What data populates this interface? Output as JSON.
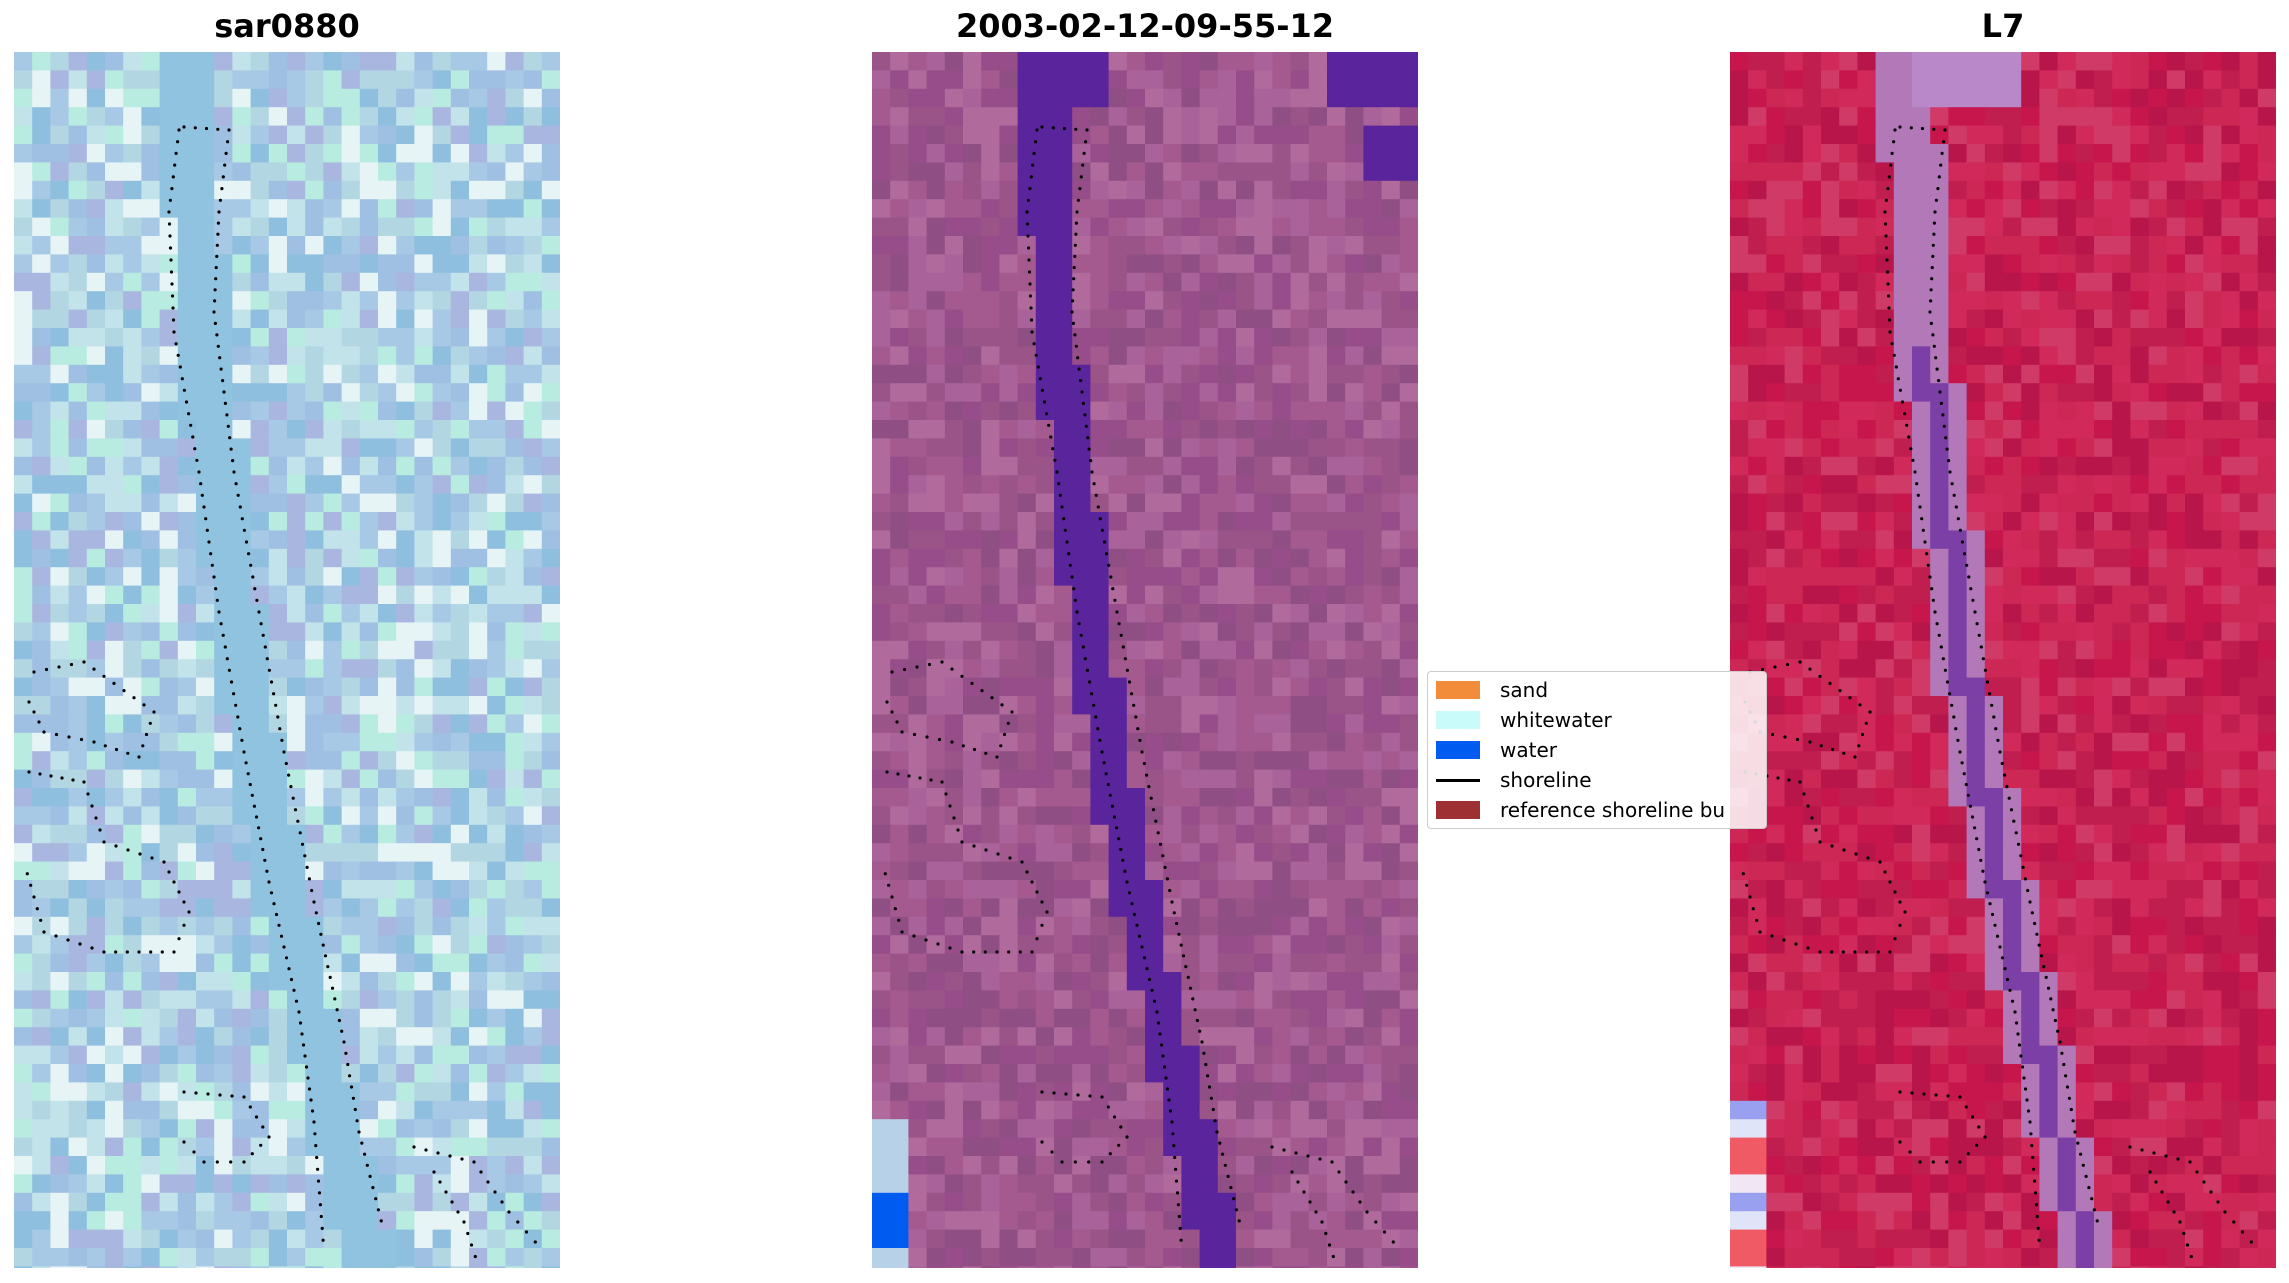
{
  "panels": [
    {
      "title": "sar0880",
      "palette": [
        "#a7c9e6",
        "#9fc0e2",
        "#b3d6e3",
        "#a9b6e0",
        "#c2e3ea",
        "#8fbfdf",
        "#b9ece0",
        "#e7f4f6"
      ]
    },
    {
      "title": "2003-02-12-09-55-12",
      "palette": [
        "#9b5488",
        "#a45a8f",
        "#8f4f85",
        "#a9639a",
        "#964d8a",
        "#b06b9c"
      ]
    },
    {
      "title": "L7",
      "palette": [
        "#c7164c",
        "#c01e4e",
        "#cc2755",
        "#d12a5a",
        "#b8154a",
        "#cf3b66"
      ]
    }
  ],
  "legend": {
    "items": [
      {
        "label": "sand",
        "kind": "patch",
        "color": "#f28c3b"
      },
      {
        "label": "whitewater",
        "kind": "patch",
        "color": "#c9fbfb"
      },
      {
        "label": "water",
        "kind": "patch",
        "color": "#005cf0"
      },
      {
        "label": "shoreline",
        "kind": "line",
        "color": "#000000"
      },
      {
        "label": "reference shoreline bu",
        "kind": "patch",
        "color": "#9e3034"
      }
    ]
  },
  "colors": {
    "water_class": "#5a249c",
    "water_blue": "#005cf0",
    "shoreline_dots": "#000000",
    "channel_l7": "#b278b8",
    "channel_l7_dark": "#7b3fa6"
  }
}
